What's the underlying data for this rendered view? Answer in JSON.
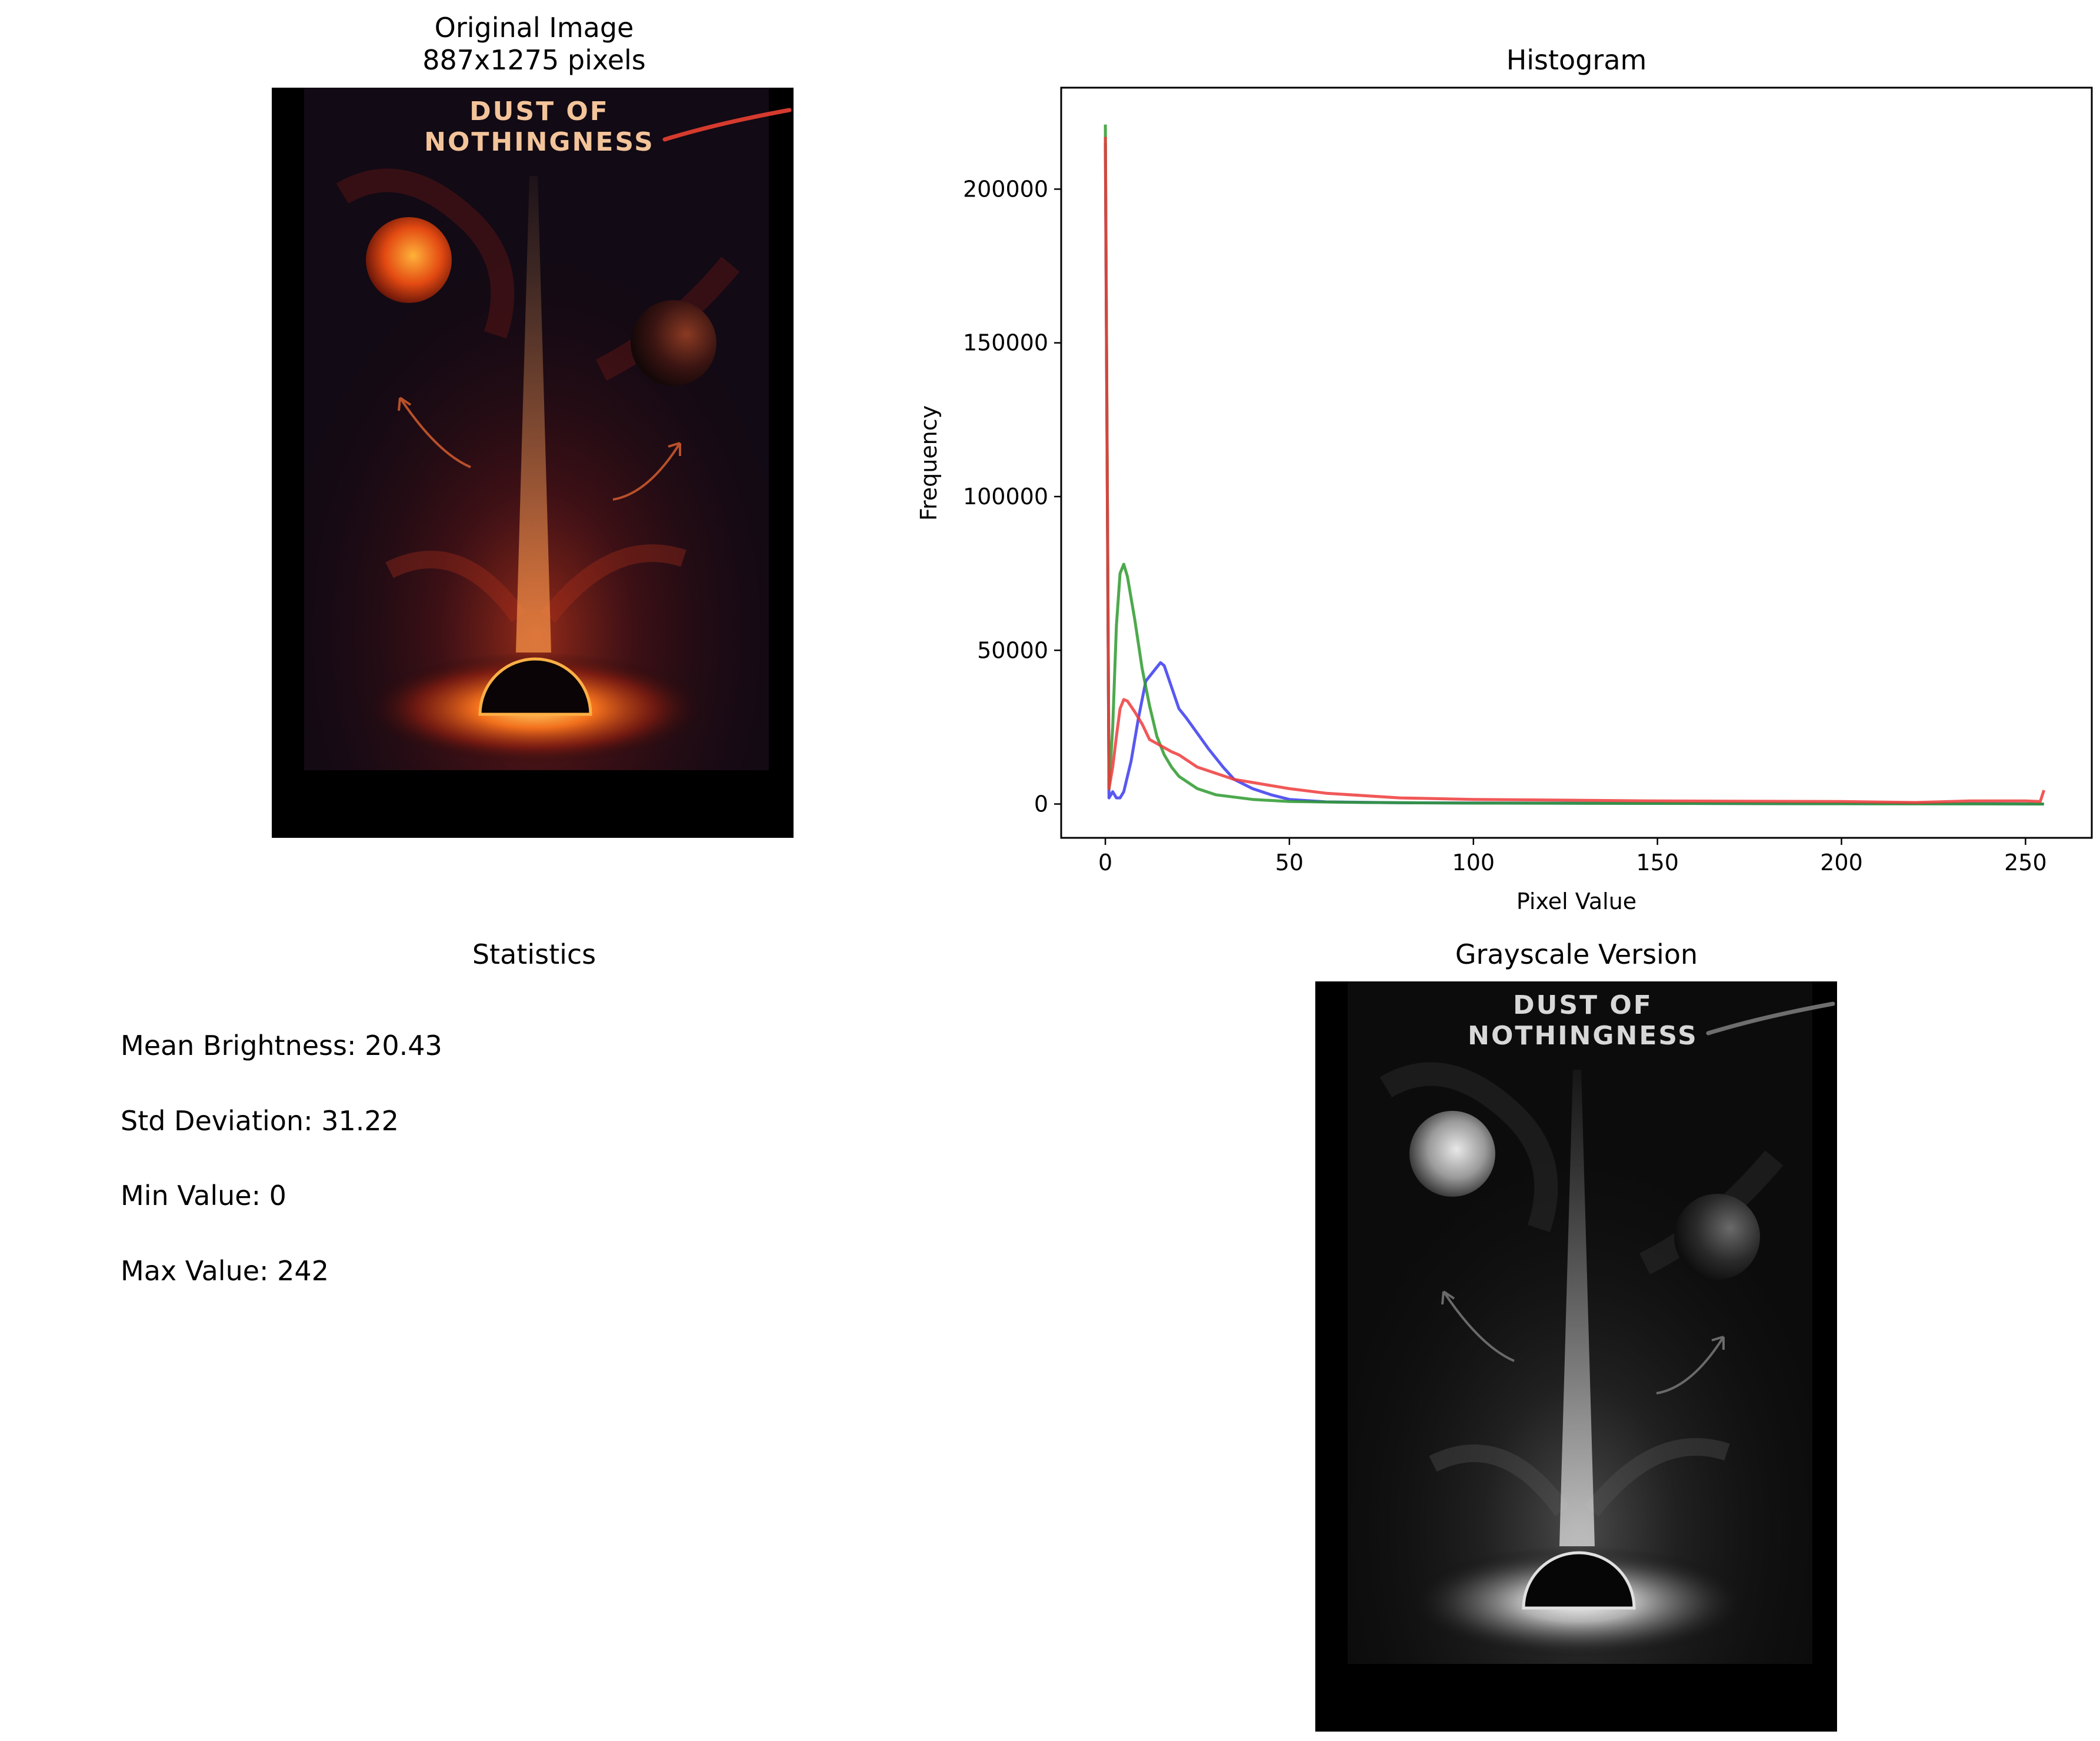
{
  "original": {
    "title": "Original Image",
    "subtitle": "887x1275 pixels",
    "poster_line1": "DUST OF",
    "poster_line2": "NOTHINGNESS"
  },
  "statistics": {
    "title": "Statistics",
    "mean": "Mean Brightness: 20.43",
    "std": "Std Deviation: 31.22",
    "min": "Min Value: 0",
    "max": "Max Value: 242"
  },
  "grayscale": {
    "title": "Grayscale Version",
    "poster_line1": "DUST OF",
    "poster_line2": "NOTHINGNESS"
  },
  "chart_data": {
    "type": "line",
    "title": "Histogram",
    "xlabel": "Pixel Value",
    "ylabel": "Frequency",
    "xlim": [
      -12,
      268
    ],
    "ylim": [
      -11000,
      233000
    ],
    "xticks": [
      0,
      50,
      100,
      150,
      200,
      250
    ],
    "yticks": [
      0,
      50000,
      100000,
      150000,
      200000
    ],
    "grid": false,
    "series": [
      {
        "color": "#3b3bef",
        "points": [
          [
            0,
            215000
          ],
          [
            1,
            2000
          ],
          [
            2,
            4000
          ],
          [
            3,
            2000
          ],
          [
            4,
            2000
          ],
          [
            5,
            4000
          ],
          [
            7,
            14000
          ],
          [
            9,
            28000
          ],
          [
            11,
            40000
          ],
          [
            13,
            43000
          ],
          [
            15,
            46000
          ],
          [
            16,
            45000
          ],
          [
            18,
            38000
          ],
          [
            20,
            31000
          ],
          [
            22,
            28000
          ],
          [
            25,
            23000
          ],
          [
            28,
            18000
          ],
          [
            32,
            12000
          ],
          [
            35,
            8000
          ],
          [
            40,
            5000
          ],
          [
            45,
            3000
          ],
          [
            50,
            1500
          ],
          [
            60,
            700
          ],
          [
            80,
            400
          ],
          [
            120,
            300
          ],
          [
            160,
            200
          ],
          [
            200,
            100
          ],
          [
            240,
            100
          ],
          [
            255,
            0
          ]
        ]
      },
      {
        "color": "#2e9a2e",
        "points": [
          [
            0,
            221000
          ],
          [
            1,
            5000
          ],
          [
            2,
            25000
          ],
          [
            3,
            58000
          ],
          [
            4,
            75000
          ],
          [
            5,
            78000
          ],
          [
            6,
            74000
          ],
          [
            8,
            60000
          ],
          [
            10,
            44000
          ],
          [
            12,
            32000
          ],
          [
            14,
            22000
          ],
          [
            16,
            16000
          ],
          [
            18,
            12000
          ],
          [
            20,
            9000
          ],
          [
            25,
            5000
          ],
          [
            30,
            3000
          ],
          [
            40,
            1500
          ],
          [
            50,
            800
          ],
          [
            70,
            500
          ],
          [
            100,
            300
          ],
          [
            150,
            200
          ],
          [
            200,
            100
          ],
          [
            255,
            0
          ]
        ]
      },
      {
        "color": "#ef3b3b",
        "points": [
          [
            0,
            217000
          ],
          [
            1,
            5000
          ],
          [
            2,
            12000
          ],
          [
            3,
            22000
          ],
          [
            4,
            31000
          ],
          [
            5,
            34000
          ],
          [
            6,
            33500
          ],
          [
            8,
            30000
          ],
          [
            10,
            26000
          ],
          [
            12,
            21000
          ],
          [
            15,
            19000
          ],
          [
            18,
            17000
          ],
          [
            20,
            16000
          ],
          [
            25,
            12000
          ],
          [
            30,
            10000
          ],
          [
            35,
            8000
          ],
          [
            40,
            7000
          ],
          [
            50,
            5000
          ],
          [
            60,
            3500
          ],
          [
            80,
            2000
          ],
          [
            100,
            1500
          ],
          [
            150,
            1000
          ],
          [
            200,
            800
          ],
          [
            220,
            500
          ],
          [
            235,
            1000
          ],
          [
            250,
            1000
          ],
          [
            254,
            800
          ],
          [
            255,
            4500
          ]
        ]
      }
    ]
  }
}
